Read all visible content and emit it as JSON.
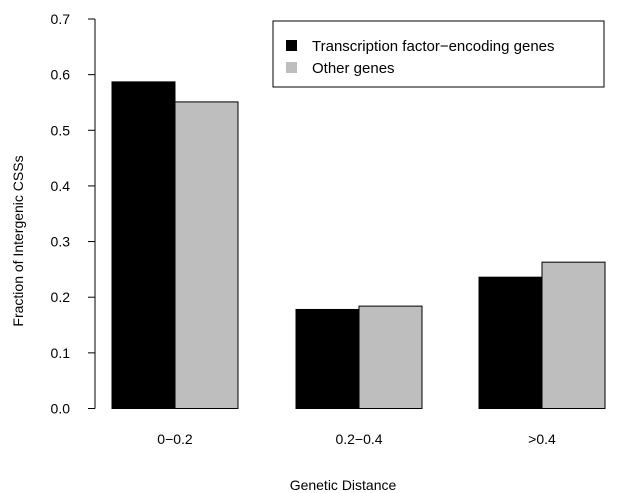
{
  "chart_data": {
    "type": "bar",
    "categories": [
      "0−0.2",
      "0.2−0.4",
      ">0.4"
    ],
    "series": [
      {
        "name": "Transcription factor−encoding genes",
        "values": [
          0.587,
          0.178,
          0.236
        ],
        "color": "#000000"
      },
      {
        "name": "Other genes",
        "values": [
          0.551,
          0.184,
          0.263
        ],
        "color": "#bebebe"
      }
    ],
    "xlabel": "Genetic Distance",
    "ylabel": "Fraction of Intergenic CSSs",
    "ylim": [
      0,
      0.7
    ],
    "yticks": [
      "0.0",
      "0.1",
      "0.2",
      "0.3",
      "0.4",
      "0.5",
      "0.6",
      "0.7"
    ],
    "legend_position": "top-right",
    "grid": false
  }
}
